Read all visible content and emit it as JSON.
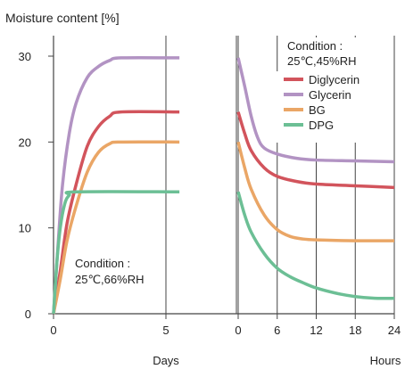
{
  "chart_data": {
    "type": "line",
    "ylabel": "Moisture content [%]",
    "ylim": [
      0,
      30
    ],
    "y_ticks": [
      0,
      10,
      20,
      30
    ],
    "grid": "vertical lines only",
    "x_segments": [
      {
        "label": "Days",
        "range": [
          0,
          5
        ],
        "ticks": [
          0,
          5
        ]
      },
      {
        "label": "Hours",
        "range": [
          0,
          24
        ],
        "ticks": [
          0,
          6,
          12,
          18,
          24
        ]
      }
    ],
    "conditions": [
      {
        "title": "Condition :",
        "value": "25℃,66%RH",
        "segment": "Days"
      },
      {
        "title": "Condition :",
        "value": "25℃,45%RH",
        "segment": "Hours"
      }
    ],
    "legend_position": "top-right",
    "series": [
      {
        "name": "Diglycerin",
        "color": "#d2545c",
        "days": [
          [
            0,
            0
          ],
          [
            0.3,
            5
          ],
          [
            0.6,
            10.5
          ],
          [
            1,
            15
          ],
          [
            1.5,
            19.5
          ],
          [
            2,
            21.8
          ],
          [
            2.5,
            23
          ],
          [
            3,
            23.5
          ],
          [
            5.6,
            23.5
          ]
        ],
        "hours": [
          [
            0,
            23.5
          ],
          [
            1,
            21
          ],
          [
            2,
            19
          ],
          [
            4,
            17
          ],
          [
            6,
            16
          ],
          [
            9,
            15.4
          ],
          [
            12,
            15.1
          ],
          [
            18,
            14.9
          ],
          [
            24,
            14.7
          ]
        ]
      },
      {
        "name": "Glycerin",
        "color": "#b293c3",
        "days": [
          [
            0,
            0
          ],
          [
            0.2,
            8
          ],
          [
            0.4,
            15
          ],
          [
            0.7,
            21
          ],
          [
            1,
            24.5
          ],
          [
            1.5,
            27.5
          ],
          [
            2,
            28.8
          ],
          [
            2.5,
            29.5
          ],
          [
            3,
            29.8
          ],
          [
            5.6,
            29.8
          ]
        ],
        "hours": [
          [
            0,
            29.8
          ],
          [
            1,
            26.5
          ],
          [
            2,
            23
          ],
          [
            3,
            20.5
          ],
          [
            4,
            19.3
          ],
          [
            6,
            18.6
          ],
          [
            9,
            18.1
          ],
          [
            12,
            17.9
          ],
          [
            18,
            17.8
          ],
          [
            24,
            17.7
          ]
        ]
      },
      {
        "name": "BG",
        "color": "#eaa666",
        "days": [
          [
            0,
            0
          ],
          [
            0.3,
            4
          ],
          [
            0.6,
            8.5
          ],
          [
            1,
            12.5
          ],
          [
            1.5,
            16.5
          ],
          [
            2,
            18.8
          ],
          [
            2.5,
            19.8
          ],
          [
            3,
            20
          ],
          [
            5.6,
            20
          ]
        ],
        "hours": [
          [
            0,
            20
          ],
          [
            1,
            17
          ],
          [
            2,
            14.5
          ],
          [
            4,
            11.5
          ],
          [
            6,
            9.8
          ],
          [
            8,
            9
          ],
          [
            10,
            8.7
          ],
          [
            12,
            8.6
          ],
          [
            18,
            8.5
          ],
          [
            24,
            8.5
          ]
        ]
      },
      {
        "name": "DPG",
        "color": "#6cbf95",
        "days": [
          [
            0,
            0
          ],
          [
            0.15,
            6
          ],
          [
            0.3,
            10
          ],
          [
            0.5,
            12.8
          ],
          [
            0.7,
            13.8
          ],
          [
            1,
            14.2
          ],
          [
            5.6,
            14.2
          ]
        ],
        "hours": [
          [
            0,
            14.2
          ],
          [
            1,
            11.5
          ],
          [
            2,
            9.5
          ],
          [
            4,
            7
          ],
          [
            6,
            5.3
          ],
          [
            8,
            4.3
          ],
          [
            10,
            3.6
          ],
          [
            12,
            3
          ],
          [
            15,
            2.4
          ],
          [
            18,
            2
          ],
          [
            21,
            1.8
          ],
          [
            24,
            1.8
          ]
        ]
      }
    ]
  }
}
